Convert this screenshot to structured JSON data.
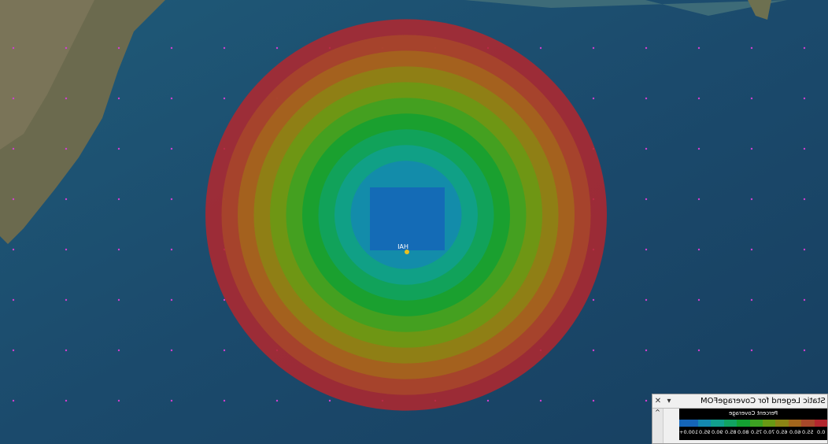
{
  "map": {
    "site_label": "HAI"
  },
  "legend_window": {
    "title": "Static Legend for CoverageFOM",
    "heading": "Percent Coverage",
    "entries": [
      {
        "label": "0.0",
        "color": "#b3272e"
      },
      {
        "label": "55.0",
        "color": "#a8482a"
      },
      {
        "label": "60.0",
        "color": "#a3661c"
      },
      {
        "label": "65.0",
        "color": "#8c8514"
      },
      {
        "label": "70.0",
        "color": "#699a14"
      },
      {
        "label": "75.0",
        "color": "#3da222"
      },
      {
        "label": "80.0",
        "color": "#13a032"
      },
      {
        "label": "85.0",
        "color": "#11a262"
      },
      {
        "label": "90.0",
        "color": "#11a08e"
      },
      {
        "label": "95.0",
        "color": "#1488b0"
      },
      {
        "label": "100.0+",
        "color": "#1565b8"
      }
    ]
  }
}
